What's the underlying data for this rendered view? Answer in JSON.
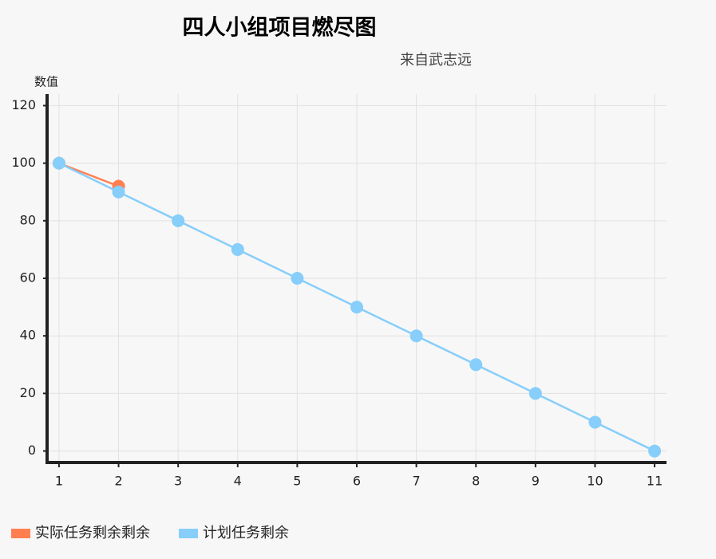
{
  "chart_data": {
    "type": "line",
    "title": "四人小组项目燃尽图",
    "subtitle": "来自武志远",
    "y_label": "数值",
    "x": [
      1,
      2,
      3,
      4,
      5,
      6,
      7,
      8,
      9,
      10,
      11
    ],
    "series": [
      {
        "name": "实际任务剩余剩余",
        "color": "#ff7f50",
        "values": [
          100,
          92,
          null,
          null,
          null,
          null,
          null,
          null,
          null,
          null,
          null
        ]
      },
      {
        "name": "计划任务剩余",
        "color": "#87cefa",
        "values": [
          100,
          90,
          80,
          70,
          60,
          50,
          40,
          30,
          20,
          10,
          0
        ]
      }
    ],
    "xlim": [
      0.8,
      11.2
    ],
    "xticks": [
      1,
      2,
      3,
      4,
      5,
      6,
      7,
      8,
      9,
      10,
      11
    ],
    "ylim": [
      -4,
      124
    ],
    "yticks": [
      0,
      20,
      40,
      60,
      80,
      100,
      120
    ],
    "grid": true,
    "legend": "bottom-left"
  }
}
